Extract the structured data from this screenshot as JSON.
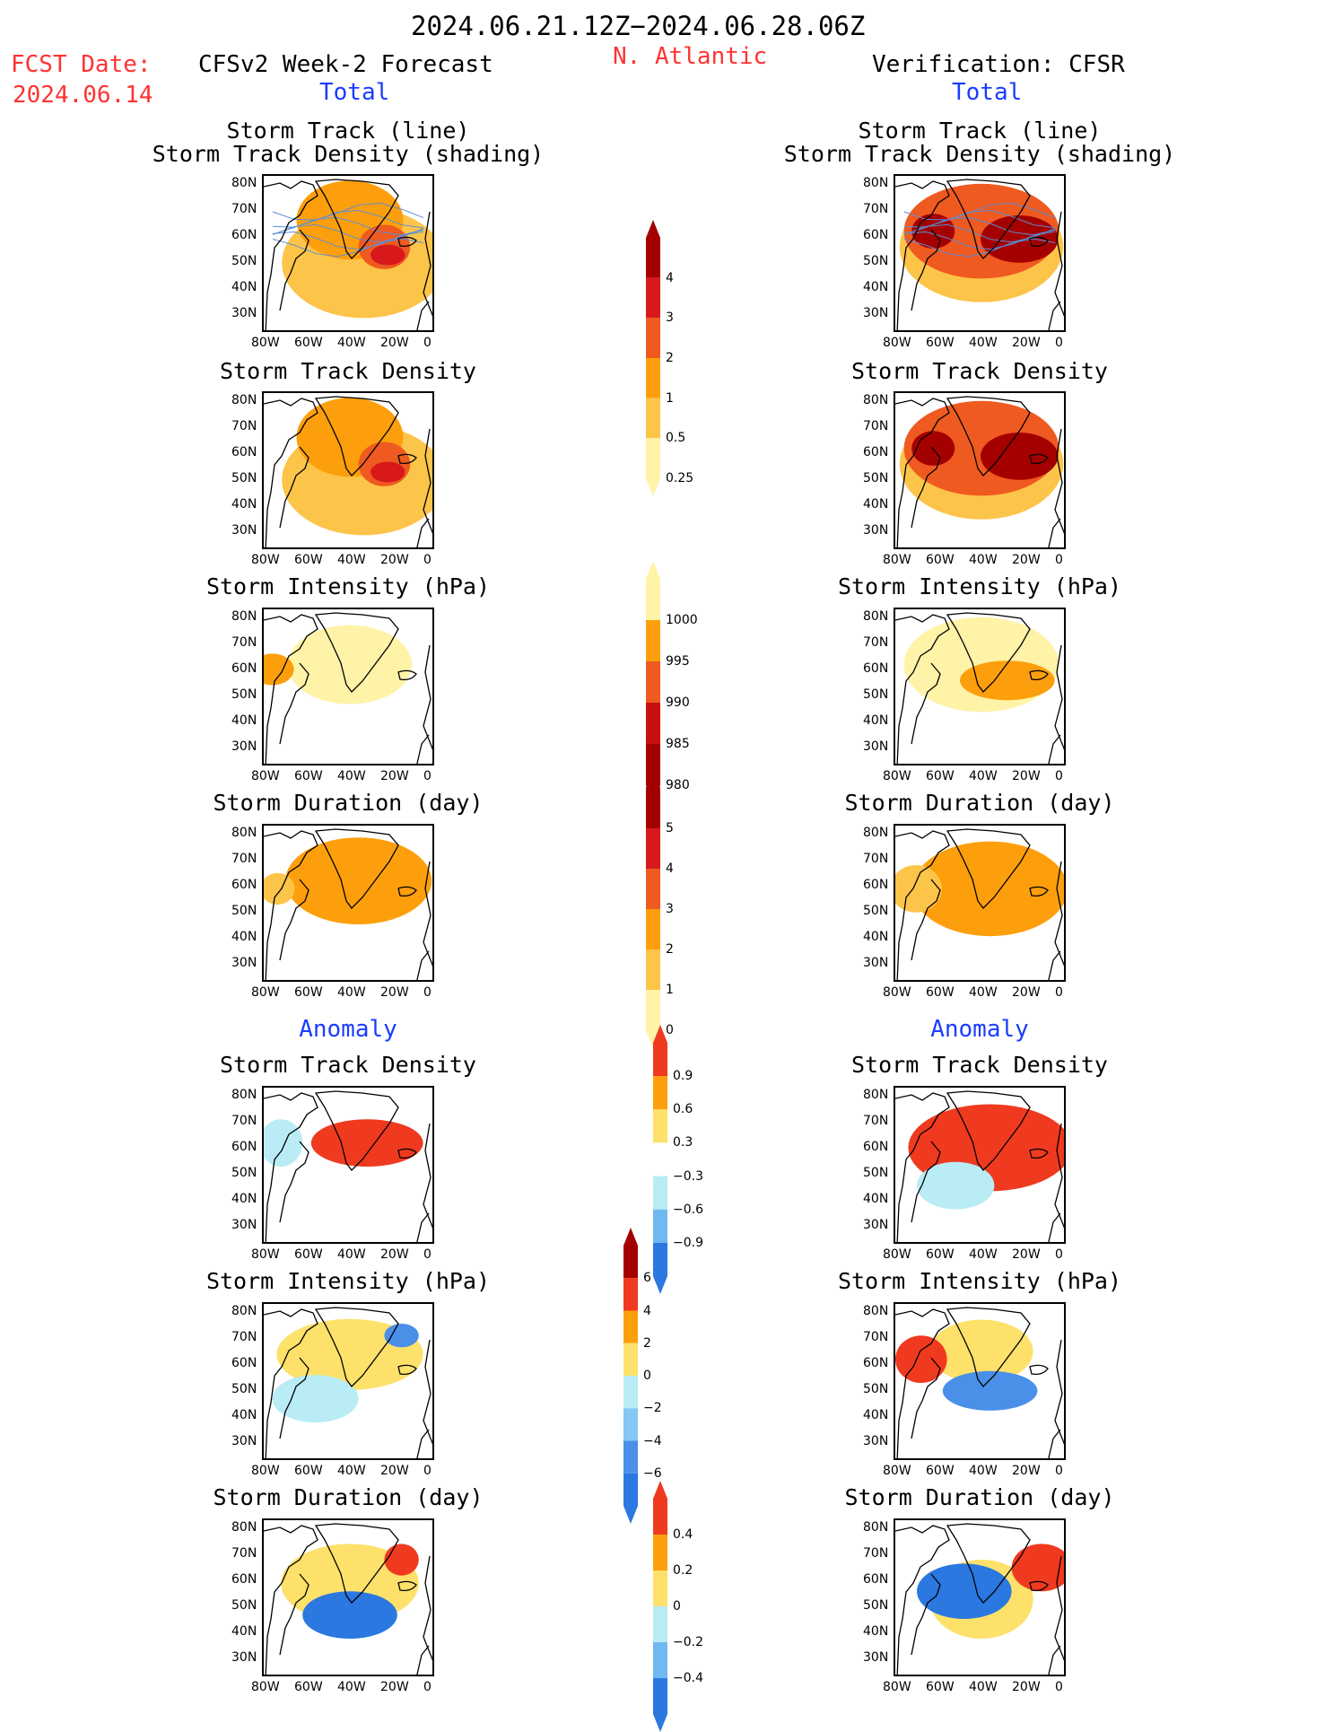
{
  "header": {
    "period": "2024.06.21.12Z−2024.06.28.06Z",
    "region": "N. Atlantic",
    "fcst_label": "FCST Date:",
    "fcst_date": "2024.06.14",
    "left_title": "CFSv2 Week-2 Forecast",
    "right_title": "Verification: CFSR",
    "left_sub": "Total",
    "right_sub": "Total",
    "left_anom": "Anomaly",
    "right_anom": "Anomaly"
  },
  "panels": {
    "st_line": "Storm Track (line)",
    "st_shade": "Storm Track Density (shading)",
    "density": "Storm Track Density",
    "intensity": "Storm Intensity (hPa)",
    "duration": "Storm Duration (day)"
  },
  "axes": {
    "lat": [
      "80N",
      "70N",
      "60N",
      "50N",
      "40N",
      "30N"
    ],
    "lon": [
      "80W",
      "60W",
      "40W",
      "20W",
      "0"
    ]
  },
  "colorbars": [
    {
      "labels": [
        "4",
        "3",
        "2",
        "1",
        "0.5",
        "0.25"
      ],
      "colors": [
        "#a50000",
        "#d7191c",
        "#ef5a20",
        "#fd9f0c",
        "#fdc44a",
        "#fff3a8"
      ]
    },
    {
      "labels": [
        "1000",
        "995",
        "990",
        "985",
        "980"
      ],
      "colors": [
        "#fff3a8",
        "#fd9f0c",
        "#ef5a20",
        "#c81010",
        "#a50000"
      ]
    },
    {
      "labels": [
        "5",
        "4",
        "3",
        "2",
        "1",
        "0"
      ],
      "colors": [
        "#a50000",
        "#d7191c",
        "#ef5a20",
        "#fd9f0c",
        "#fdc44a",
        "#fff3a8"
      ]
    },
    {
      "labels": [
        "0.9",
        "0.6",
        "0.3",
        "−0.3",
        "−0.6",
        "−0.9"
      ],
      "colors": [
        "#ef3a20",
        "#fd9f0c",
        "#fde16a",
        "#ffffff",
        "#b9ecf5",
        "#70b8f0",
        "#2a78e0"
      ]
    },
    {
      "labels": [
        "6",
        "4",
        "2",
        "0",
        "−2",
        "−4",
        "−6"
      ],
      "colors": [
        "#a50000",
        "#ef3a20",
        "#fd9f0c",
        "#fde16a",
        "#b9ecf5",
        "#86c8f5",
        "#4a90e8",
        "#2a78e0"
      ]
    },
    {
      "labels": [
        "0.4",
        "0.2",
        "0",
        "−0.2",
        "−0.4"
      ],
      "colors": [
        "#ef3a20",
        "#fd9f0c",
        "#fde16a",
        "#b9ecf5",
        "#70b8f0",
        "#2a78e0"
      ]
    }
  ]
}
